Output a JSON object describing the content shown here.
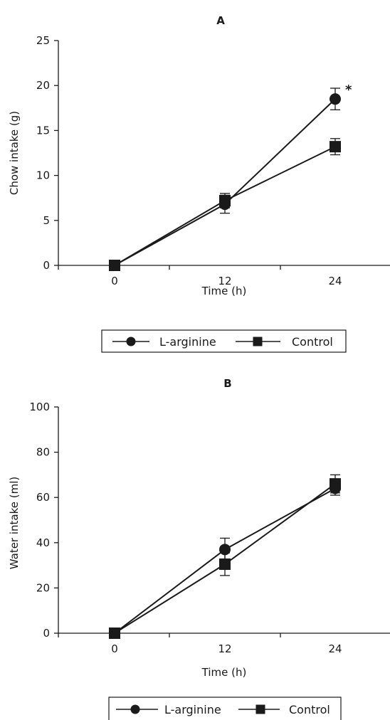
{
  "chart_data": [
    {
      "type": "line",
      "panel_label": "A",
      "xlabel": "Time (h)",
      "ylabel": "Chow intake (g)",
      "categories": [
        "0",
        "12",
        "24"
      ],
      "x": [
        0,
        12,
        24
      ],
      "ylim": [
        0,
        25
      ],
      "yticks": [
        0,
        5,
        10,
        15,
        20,
        25
      ],
      "grid": false,
      "legend_position": "bottom",
      "annotation": "*",
      "series": [
        {
          "name": "L-arginine",
          "marker": "circle",
          "values": [
            0,
            6.8,
            18.5
          ],
          "error": [
            0,
            1.0,
            1.2
          ]
        },
        {
          "name": "Control",
          "marker": "square",
          "values": [
            0,
            7.2,
            13.2
          ],
          "error": [
            0,
            0.8,
            0.9
          ]
        }
      ]
    },
    {
      "type": "line",
      "panel_label": "B",
      "xlabel": "Time (h)",
      "ylabel": "Water intake (ml)",
      "categories": [
        "0",
        "12",
        "24"
      ],
      "x": [
        0,
        12,
        24
      ],
      "ylim": [
        0,
        100
      ],
      "yticks": [
        0,
        20,
        40,
        60,
        80,
        100
      ],
      "grid": false,
      "legend_position": "bottom",
      "series": [
        {
          "name": "L-arginine",
          "marker": "circle",
          "values": [
            0,
            37,
            64
          ],
          "error": [
            0,
            5,
            3
          ]
        },
        {
          "name": "Control",
          "marker": "square",
          "values": [
            0,
            30.5,
            66
          ],
          "error": [
            0,
            5,
            4
          ]
        }
      ]
    }
  ],
  "colors": {
    "ink": "#1a1a1a"
  }
}
